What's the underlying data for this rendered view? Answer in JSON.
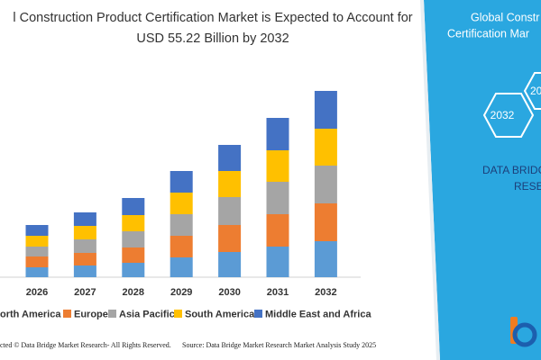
{
  "chart_data": {
    "type": "stacked-bar",
    "title_lines": [
      "l Construction Product Certification Market is Expected to Account for",
      "USD 55.22 Billion by 2032"
    ],
    "categories": [
      "2026",
      "2027",
      "2028",
      "2029",
      "2030",
      "2031",
      "2032"
    ],
    "series": [
      {
        "name": "orth America",
        "color": "#5b9bd5",
        "values": [
          11,
          13,
          16,
          22,
          28,
          34,
          40
        ]
      },
      {
        "name": "Europe",
        "color": "#ed7d31",
        "values": [
          12,
          14,
          17,
          24,
          30,
          36,
          42
        ]
      },
      {
        "name": "Asia Pacific",
        "color": "#a5a5a5",
        "values": [
          11,
          15,
          18,
          24,
          31,
          36,
          42
        ]
      },
      {
        "name": "South America",
        "color": "#ffc000",
        "values": [
          12,
          15,
          18,
          24,
          29,
          35,
          41
        ]
      },
      {
        "name": "Middle East and Africa",
        "color": "#4472c4",
        "values": [
          12,
          15,
          19,
          24,
          29,
          36,
          42
        ]
      }
    ]
  },
  "footer": {
    "copyright": "cted © Data Bridge Market Research- All Rights Reserved.",
    "source": "Source: Data Bridge Market Research Market Analysis Study 2025"
  },
  "panel": {
    "title_lines": [
      "Global Constr",
      "Certification Mar"
    ],
    "hex_labels": [
      "2032",
      "20"
    ],
    "brand_lines": [
      "DATA BRIDG",
      "RESE"
    ]
  }
}
